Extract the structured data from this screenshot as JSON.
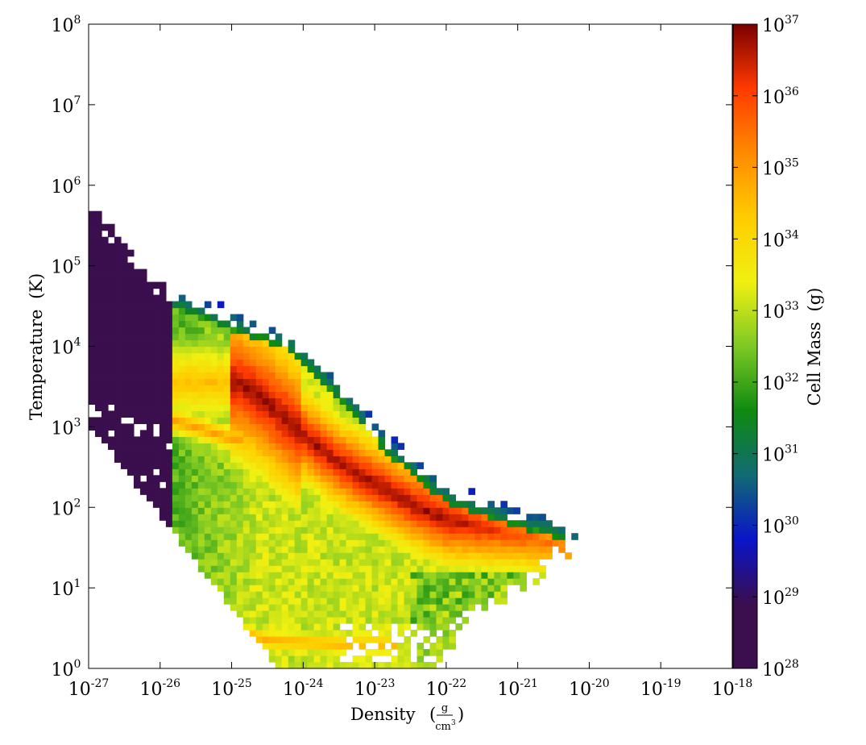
{
  "chart_data": {
    "type": "heatmap",
    "title": "",
    "xlabel": "Density",
    "xlabel_unit_numerator": "g",
    "xlabel_unit_denominator": "cm",
    "xlabel_unit_denominator_exp": "3",
    "ylabel": "Temperature",
    "ylabel_unit": "(K)",
    "colorbar_label": "Cell Mass",
    "colorbar_unit": "(g)",
    "x_scale": "log",
    "y_scale": "log",
    "xlim": [
      "1e-27",
      "1e-18"
    ],
    "ylim": [
      "1e0",
      "1e8"
    ],
    "colorbar_range": [
      "1e28",
      "1e37"
    ],
    "x_ticks": [
      {
        "base": "10",
        "exp": "-27"
      },
      {
        "base": "10",
        "exp": "-26"
      },
      {
        "base": "10",
        "exp": "-25"
      },
      {
        "base": "10",
        "exp": "-24"
      },
      {
        "base": "10",
        "exp": "-23"
      },
      {
        "base": "10",
        "exp": "-22"
      },
      {
        "base": "10",
        "exp": "-21"
      },
      {
        "base": "10",
        "exp": "-20"
      },
      {
        "base": "10",
        "exp": "-19"
      },
      {
        "base": "10",
        "exp": "-18"
      }
    ],
    "y_ticks": [
      {
        "base": "10",
        "exp": "0"
      },
      {
        "base": "10",
        "exp": "1"
      },
      {
        "base": "10",
        "exp": "2"
      },
      {
        "base": "10",
        "exp": "3"
      },
      {
        "base": "10",
        "exp": "4"
      },
      {
        "base": "10",
        "exp": "5"
      },
      {
        "base": "10",
        "exp": "6"
      },
      {
        "base": "10",
        "exp": "7"
      },
      {
        "base": "10",
        "exp": "8"
      }
    ],
    "colorbar_ticks": [
      {
        "base": "10",
        "exp": "28"
      },
      {
        "base": "10",
        "exp": "29"
      },
      {
        "base": "10",
        "exp": "30"
      },
      {
        "base": "10",
        "exp": "31"
      },
      {
        "base": "10",
        "exp": "32"
      },
      {
        "base": "10",
        "exp": "33"
      },
      {
        "base": "10",
        "exp": "34"
      },
      {
        "base": "10",
        "exp": "35"
      },
      {
        "base": "10",
        "exp": "36"
      },
      {
        "base": "10",
        "exp": "37"
      }
    ],
    "colormap": [
      "#3b0e4e",
      "#3b0e4e",
      "#0a14c8",
      "#116b73",
      "#0f8a10",
      "#7dc924",
      "#f0f011",
      "#ffcc00",
      "#ff8a00",
      "#ff3a00",
      "#7a0000"
    ],
    "features": {
      "main_ridge_log_density_vs_log_temperature": [
        [
          -24.9,
          3.55
        ],
        [
          -24.5,
          3.3
        ],
        [
          -24.0,
          2.9
        ],
        [
          -23.5,
          2.55
        ],
        [
          -23.0,
          2.3
        ],
        [
          -22.5,
          2.05
        ],
        [
          -22.0,
          1.85
        ],
        [
          -21.5,
          1.75
        ],
        [
          -21.0,
          1.65
        ],
        [
          -20.5,
          1.55
        ],
        [
          -20.1,
          1.45
        ]
      ],
      "warm_branch_log_density_vs_log_temperature": [
        [
          -25.9,
          3.1
        ],
        [
          -25.5,
          3.0
        ],
        [
          -25.0,
          2.85
        ]
      ],
      "cold_tail_log_density_vs_log_temperature": [
        [
          -25.2,
          0.55
        ],
        [
          -24.5,
          0.35
        ],
        [
          -24.0,
          0.33
        ],
        [
          -23.5,
          0.3
        ],
        [
          -23.0,
          0.3
        ],
        [
          -22.8,
          0.3
        ]
      ]
    }
  }
}
